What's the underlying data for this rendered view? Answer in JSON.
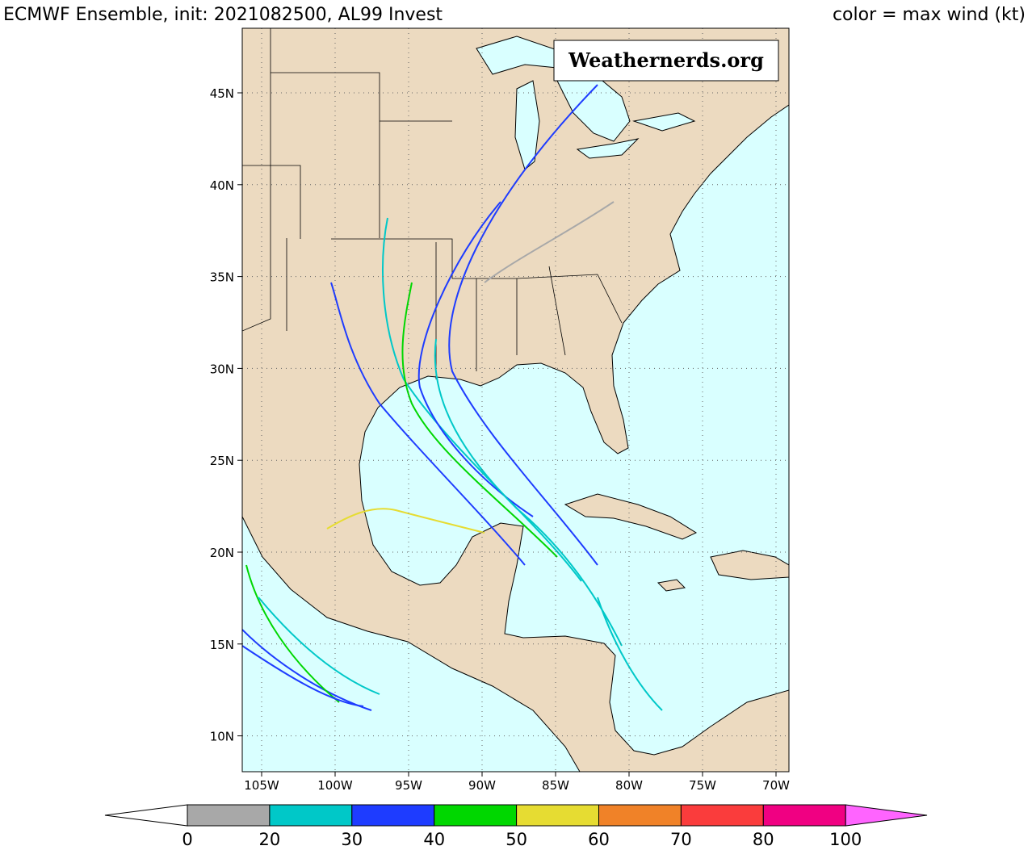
{
  "header": {
    "title": "ECMWF Ensemble, init: 2021082500, AL99 Invest",
    "legend_note": "color = max wind (kt)"
  },
  "map": {
    "watermark": "Weathernerds.org",
    "lat_labels": [
      "45N",
      "40N",
      "35N",
      "30N",
      "25N",
      "20N",
      "15N",
      "10N"
    ],
    "lon_labels": [
      "105W",
      "100W",
      "95W",
      "90W",
      "85W",
      "80W",
      "75W",
      "70W"
    ]
  },
  "colorbar": {
    "ticks": [
      0,
      20,
      30,
      40,
      50,
      60,
      70,
      80,
      100
    ],
    "colors": [
      "#a8a8a8",
      "#00c8c8",
      "#1e3cff",
      "#00d700",
      "#e6dc32",
      "#f08228",
      "#fa3c3c",
      "#f00082"
    ],
    "under_color": "#ffffff",
    "over_color": "#ff64ff"
  }
}
